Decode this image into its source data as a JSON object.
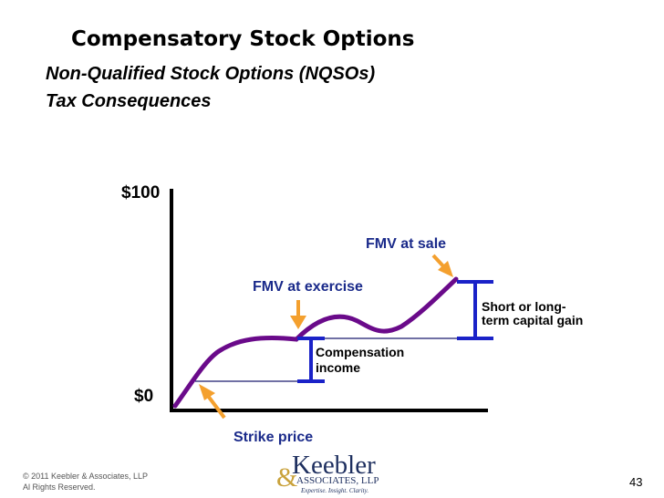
{
  "slide": {
    "title": "Compensatory Stock Options",
    "subtitle_line1": "Non-Qualified Stock Options (NQSOs)",
    "subtitle_line2": "Tax Consequences",
    "page_number": "43"
  },
  "diagram": {
    "y_top_label": "$100",
    "y_bottom_label": "$0",
    "labels": {
      "fmv_sale": "FMV at sale",
      "fmv_exercise": "FMV at exercise",
      "strike": "Strike price",
      "comp_line1": "Compensation",
      "comp_line2": "income",
      "gain_line1": "Short or long-",
      "gain_line2": "term capital gain"
    },
    "colors": {
      "curve": "#6a0a8a",
      "bracket": "#1a22c8",
      "arrow": "#f4a02e",
      "level_line": "#1a1a6e",
      "axis": "#000000"
    }
  },
  "footer": {
    "copyright_line1": "© 2011 Keebler & Associates, LLP",
    "copyright_line2": "Al Rights Reserved.",
    "logo_name": "Keebler",
    "logo_ampersand": "&",
    "logo_assoc": "ASSOCIATES, LLP",
    "logo_tagline": "Expertise. Insight. Clarity."
  }
}
